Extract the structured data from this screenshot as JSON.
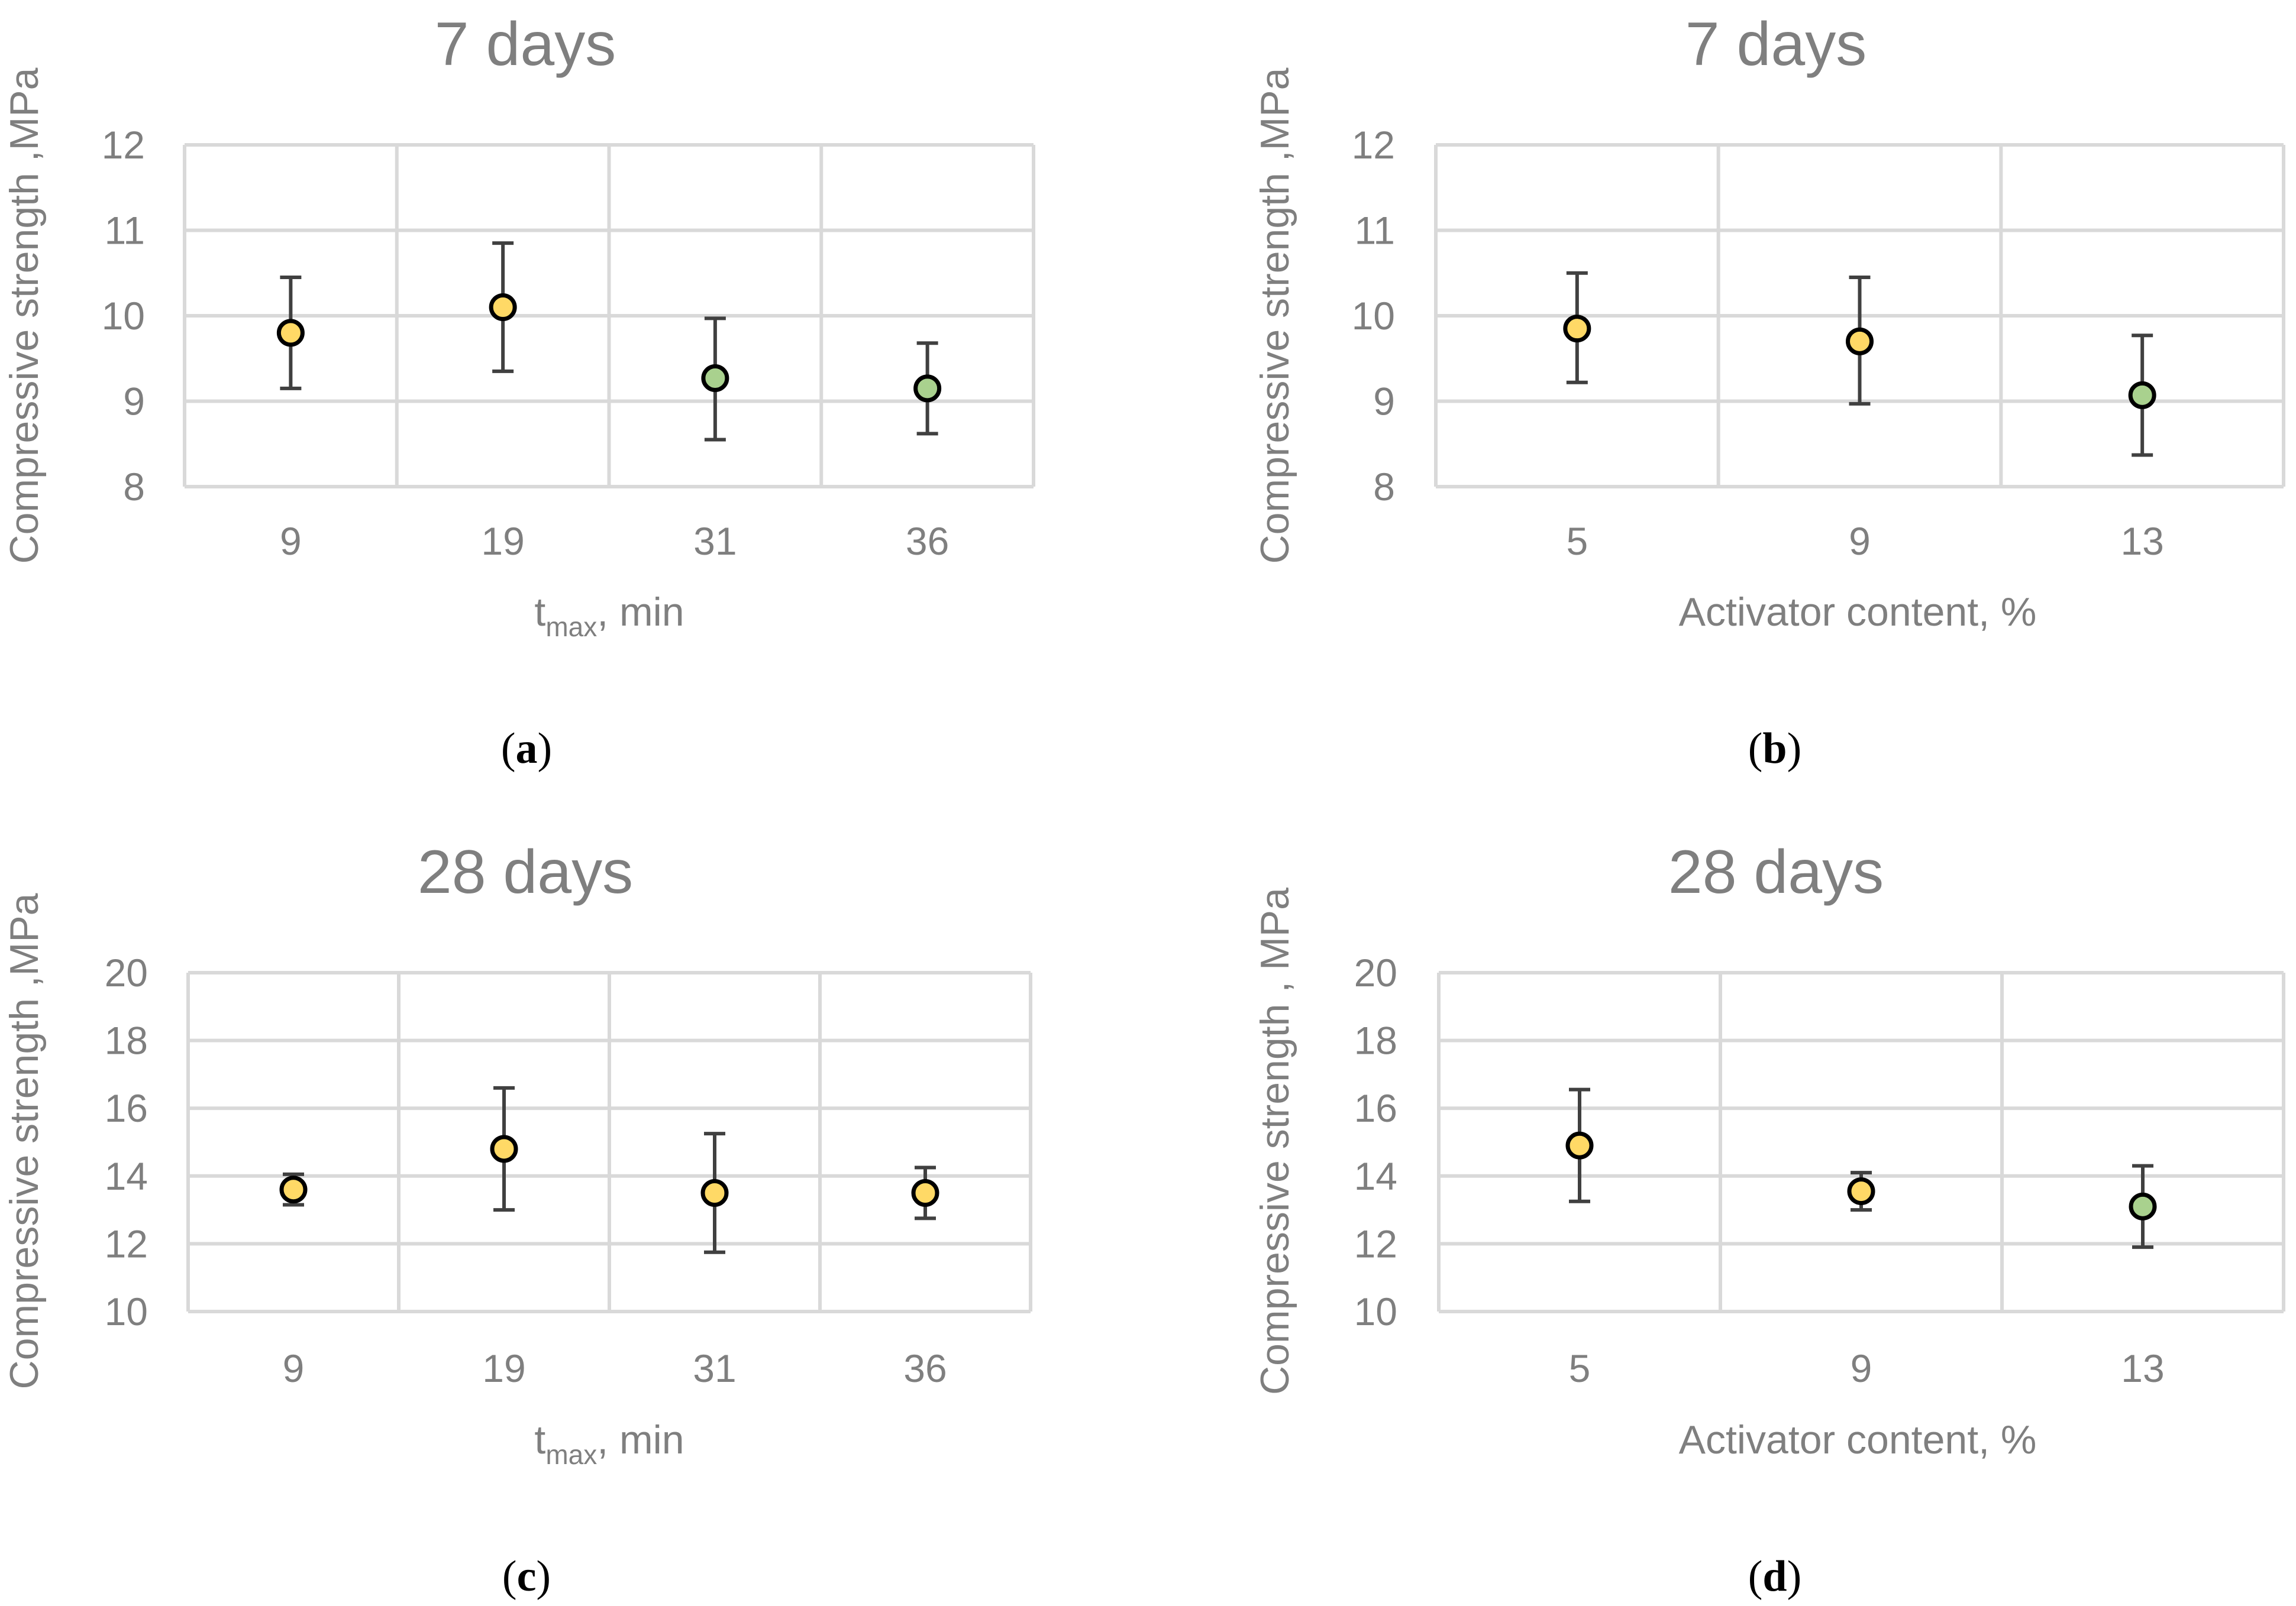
{
  "colors": {
    "yellow": "#ffd966",
    "green": "#a9d18e",
    "text": "#7f7f7f",
    "grid": "#d9d9d9",
    "errbar": "#404040"
  },
  "chart_data": [
    {
      "type": "scatter",
      "panel_label": "a",
      "title": "7 days",
      "xlabel_main": "t",
      "xlabel_sub": "max",
      "xlabel_rest": ", min",
      "ylabel": "Compressive strength ,MPa",
      "categories": [
        "9",
        "19",
        "31",
        "36"
      ],
      "values": [
        9.8,
        10.1,
        9.27,
        9.15
      ],
      "err_low": [
        9.15,
        9.35,
        8.55,
        8.62
      ],
      "err_high": [
        10.45,
        10.85,
        9.97,
        9.68
      ],
      "marker_colors": [
        "yellow",
        "yellow",
        "green",
        "green"
      ],
      "ylim": [
        8,
        12
      ],
      "yticks": [
        8,
        9,
        10,
        11,
        12
      ],
      "grid": true
    },
    {
      "type": "scatter",
      "panel_label": "b",
      "title": "7 days",
      "xlabel_main": "Activator content, %",
      "ylabel": "Compressive strength ,MPa",
      "categories": [
        "5",
        "9",
        "13"
      ],
      "values": [
        9.85,
        9.7,
        9.07
      ],
      "err_low": [
        9.22,
        8.97,
        8.37
      ],
      "err_high": [
        10.5,
        10.45,
        9.77
      ],
      "marker_colors": [
        "yellow",
        "yellow",
        "green"
      ],
      "ylim": [
        8,
        12
      ],
      "yticks": [
        8,
        9,
        10,
        11,
        12
      ],
      "grid": true
    },
    {
      "type": "scatter",
      "panel_label": "c",
      "title": "28 days",
      "xlabel_main": "t",
      "xlabel_sub": "max",
      "xlabel_rest": ", min",
      "ylabel": "Compressive strength ,MPa",
      "categories": [
        "9",
        "19",
        "31",
        "36"
      ],
      "values": [
        13.6,
        14.8,
        13.5,
        13.5
      ],
      "err_low": [
        13.15,
        13.0,
        11.75,
        12.75
      ],
      "err_high": [
        14.05,
        16.6,
        15.25,
        14.25
      ],
      "marker_colors": [
        "yellow",
        "yellow",
        "yellow",
        "yellow"
      ],
      "ylim": [
        10,
        20
      ],
      "yticks": [
        10,
        12,
        14,
        16,
        18,
        20
      ],
      "grid": true
    },
    {
      "type": "scatter",
      "panel_label": "d",
      "title": "28 days",
      "xlabel_main": "Activator content, %",
      "ylabel": "Compressive strength , MPa",
      "categories": [
        "5",
        "9",
        "13"
      ],
      "values": [
        14.9,
        13.55,
        13.1
      ],
      "err_low": [
        13.25,
        13.0,
        11.9
      ],
      "err_high": [
        16.55,
        14.1,
        14.3
      ],
      "marker_colors": [
        "yellow",
        "yellow",
        "green"
      ],
      "ylim": [
        10,
        20
      ],
      "yticks": [
        10,
        12,
        14,
        16,
        18,
        20
      ],
      "grid": true
    }
  ]
}
